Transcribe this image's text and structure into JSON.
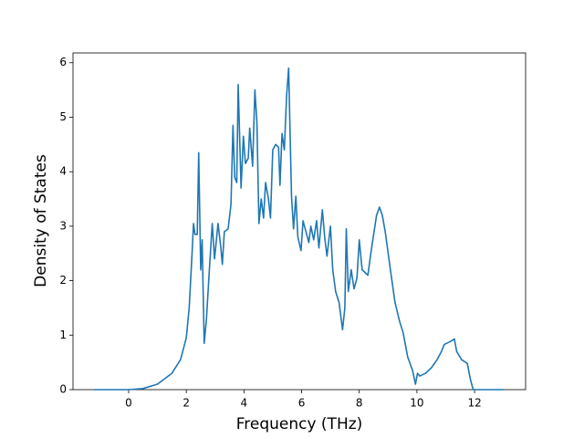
{
  "chart_data": {
    "type": "line",
    "x_label": "Frequency (THz)",
    "y_label": "Density of States",
    "xlim": [
      -1.93,
      13.77
    ],
    "ylim": [
      0,
      6.18
    ],
    "xticks": [
      0,
      2,
      4,
      6,
      8,
      10,
      12
    ],
    "yticks": [
      0,
      1,
      2,
      3,
      4,
      5,
      6
    ],
    "color": "#1f77b4",
    "x": [
      -1.2,
      0,
      0.5,
      1,
      1.5,
      1.8,
      2.0,
      2.1,
      2.2,
      2.25,
      2.3,
      2.38,
      2.43,
      2.5,
      2.55,
      2.62,
      2.7,
      2.8,
      2.9,
      2.98,
      3.1,
      3.2,
      3.25,
      3.32,
      3.45,
      3.55,
      3.62,
      3.68,
      3.75,
      3.8,
      3.9,
      3.98,
      4.05,
      4.15,
      4.2,
      4.3,
      4.38,
      4.45,
      4.52,
      4.6,
      4.68,
      4.75,
      4.85,
      4.92,
      5.0,
      5.1,
      5.2,
      5.25,
      5.32,
      5.4,
      5.48,
      5.55,
      5.65,
      5.72,
      5.8,
      5.87,
      5.98,
      6.05,
      6.15,
      6.25,
      6.32,
      6.42,
      6.52,
      6.6,
      6.72,
      6.8,
      6.88,
      7.0,
      7.08,
      7.18,
      7.3,
      7.42,
      7.5,
      7.55,
      7.62,
      7.72,
      7.82,
      7.92,
      8.0,
      8.1,
      8.2,
      8.3,
      8.4,
      8.6,
      8.7,
      8.8,
      8.9,
      9.08,
      9.24,
      9.4,
      9.52,
      9.68,
      9.85,
      9.95,
      10.02,
      10.1,
      10.3,
      10.5,
      10.7,
      10.85,
      10.95,
      11.15,
      11.3,
      11.38,
      11.55,
      11.75,
      11.85,
      11.95,
      13
    ],
    "values": [
      0,
      0,
      0.02,
      0.1,
      0.3,
      0.55,
      0.95,
      1.5,
      2.5,
      3.05,
      2.85,
      2.85,
      4.35,
      2.2,
      2.75,
      0.85,
      1.3,
      2.2,
      3.05,
      2.4,
      3.05,
      2.6,
      2.3,
      2.9,
      2.95,
      3.4,
      4.85,
      3.9,
      3.8,
      5.6,
      3.7,
      4.65,
      4.15,
      4.25,
      4.8,
      4.1,
      5.5,
      4.9,
      3.05,
      3.5,
      3.15,
      3.8,
      3.5,
      3.15,
      4.4,
      4.5,
      4.45,
      3.75,
      4.7,
      4.4,
      5.4,
      5.9,
      3.55,
      2.95,
      3.55,
      2.8,
      2.55,
      3.1,
      2.9,
      2.7,
      3.0,
      2.75,
      3.1,
      2.6,
      3.3,
      2.8,
      2.45,
      3.0,
      2.2,
      1.8,
      1.6,
      1.1,
      1.5,
      2.95,
      1.8,
      2.2,
      1.85,
      2.05,
      2.75,
      2.2,
      2.15,
      2.1,
      2.5,
      3.2,
      3.35,
      3.2,
      2.9,
      2.2,
      1.6,
      1.25,
      1.05,
      0.6,
      0.35,
      0.1,
      0.3,
      0.25,
      0.3,
      0.4,
      0.55,
      0.7,
      0.83,
      0.88,
      0.93,
      0.7,
      0.55,
      0.48,
      0.2,
      0,
      0
    ]
  }
}
